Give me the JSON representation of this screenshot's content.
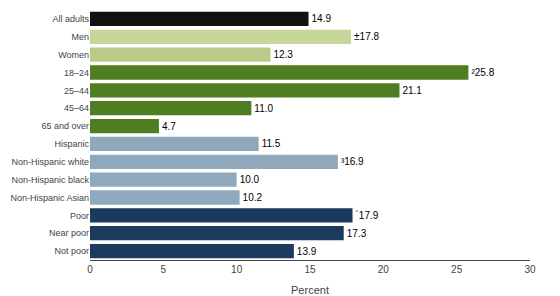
{
  "chart_data": {
    "type": "bar",
    "orientation": "horizontal",
    "categories": [
      "All adults",
      "Men",
      "Women",
      "18–24",
      "25–44",
      "45–64",
      "65 and over",
      "Hispanic",
      "Non-Hispanic white",
      "Non-Hispanic black",
      "Non-Hispanic Asian",
      "Poor",
      "Near poor",
      "Not poor"
    ],
    "values": [
      14.9,
      17.8,
      12.3,
      25.8,
      21.1,
      11.0,
      4.7,
      11.5,
      16.9,
      10.0,
      10.2,
      17.9,
      17.3,
      13.9
    ],
    "value_labels": [
      "14.9",
      "±17.8",
      "12.3",
      "²25.8",
      "21.1",
      "11.0",
      "4.7",
      "11.5",
      "³16.9",
      "10.0",
      "10.2",
      "´17.9",
      "17.3",
      "13.9"
    ],
    "colors": [
      "#111111",
      "#c5d89a",
      "#b8cc88",
      "#4e7d22",
      "#4e7d22",
      "#4e7d22",
      "#4e7d22",
      "#8fa8bb",
      "#8fa8bb",
      "#8fa8bb",
      "#8fa8bb",
      "#1c3a5e",
      "#1c3a5e",
      "#1c3a5e"
    ],
    "data_labels": true,
    "xlabel": "Percent",
    "xlim": [
      0,
      30
    ],
    "xticks": [
      0,
      5,
      10,
      15,
      20,
      25,
      30
    ],
    "grid": false
  }
}
